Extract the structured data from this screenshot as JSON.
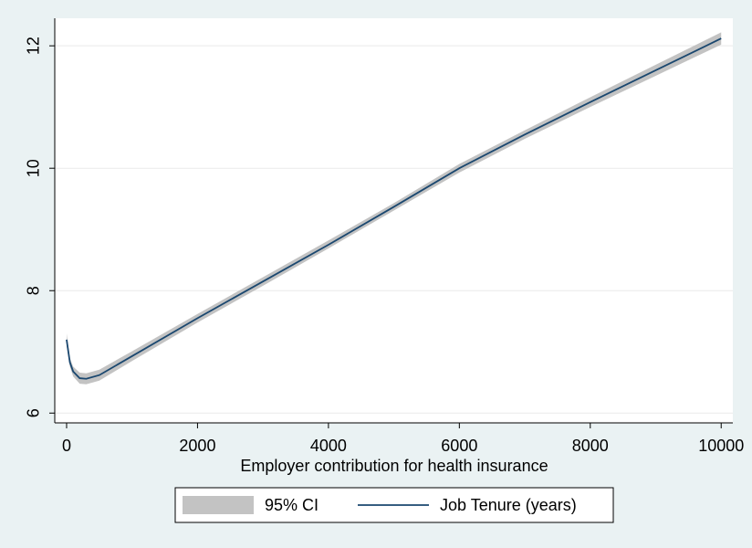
{
  "chart_data": {
    "type": "line",
    "xlabel": "Employer contribution for health insurance",
    "x": [
      0,
      50,
      100,
      200,
      300,
      500,
      1000,
      2000,
      3000,
      4000,
      5000,
      6000,
      7000,
      8000,
      9000,
      10000
    ],
    "series": [
      {
        "name": "95% CI",
        "type": "band",
        "color": "#c3c3c3",
        "lower": [
          7.1,
          6.76,
          6.6,
          6.48,
          6.47,
          6.53,
          6.85,
          7.48,
          8.08,
          8.69,
          9.31,
          9.93,
          10.48,
          11.0,
          11.51,
          12.02
        ],
        "upper": [
          7.3,
          6.9,
          6.76,
          6.66,
          6.65,
          6.71,
          7.01,
          7.62,
          8.22,
          8.82,
          9.43,
          10.07,
          10.62,
          11.16,
          11.69,
          12.22
        ]
      },
      {
        "name": "Job Tenure (years)",
        "type": "line",
        "color": "#1a476f",
        "values": [
          7.2,
          6.83,
          6.68,
          6.57,
          6.56,
          6.62,
          6.93,
          7.55,
          8.15,
          8.75,
          9.37,
          10.0,
          10.55,
          11.08,
          11.6,
          12.12
        ]
      }
    ],
    "xlim": [
      -181,
      10178
    ],
    "xticks": [
      0,
      2000,
      4000,
      6000,
      8000,
      10000
    ],
    "ylim": [
      5.84,
      12.45
    ],
    "yticks": [
      6,
      8,
      10,
      12
    ],
    "grid": true,
    "legend": "bottom"
  }
}
